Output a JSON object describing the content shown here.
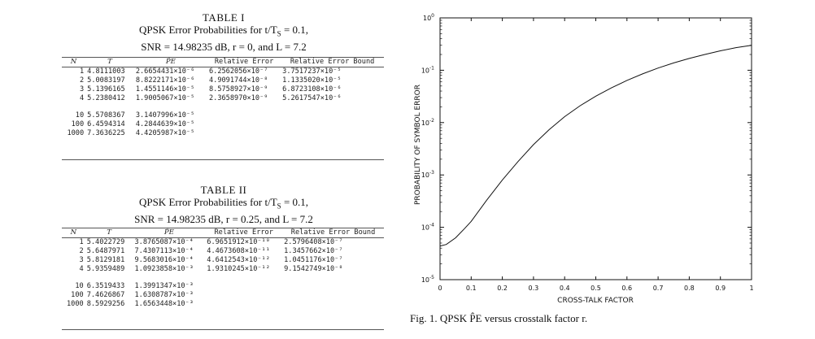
{
  "table1": {
    "number": "TABLE I",
    "caption_line1": "QPSK Error Probabilities for t/T",
    "caption_line1_sub": "S",
    "caption_line1_end": " = 0.1,",
    "caption_line2": "SNR = 14.98235 dB, r = 0, and L = 7.2",
    "headers": [
      "N",
      "T",
      "P̂E",
      "Relative Error",
      "Relative Error Bound"
    ],
    "rows": [
      [
        "1",
        "4.8111003",
        "2.6654431×10⁻⁶",
        "6.2562056×10⁻⁷",
        "3.7517237×10⁻⁵"
      ],
      [
        "2",
        "5.0083197",
        "8.8222171×10⁻⁶",
        "4.9091744×10⁻⁸",
        "1.1335020×10⁻⁵"
      ],
      [
        "3",
        "5.1396165",
        "1.4551146×10⁻⁵",
        "8.5758927×10⁻⁹",
        "6.8723108×10⁻⁶"
      ],
      [
        "4",
        "5.2380412",
        "1.9005067×10⁻⁵",
        "2.3658970×10⁻⁹",
        "5.2617547×10⁻⁶"
      ],
      [
        "10",
        "5.5708367",
        "3.1407996×10⁻⁵",
        "",
        ""
      ],
      [
        "100",
        "6.4594314",
        "4.2844639×10⁻⁵",
        "",
        ""
      ],
      [
        "1000",
        "7.3636225",
        "4.4205987×10⁻⁵",
        "",
        ""
      ]
    ]
  },
  "table2": {
    "number": "TABLE II",
    "caption_line1": "QPSK Error Probabilities for t/T",
    "caption_line1_sub": "S",
    "caption_line1_end": " = 0.1,",
    "caption_line2": "SNR = 14.98235 dB, r = 0.25, and L = 7.2",
    "headers": [
      "N",
      "T",
      "P̂E",
      "Relative Error",
      "Relative Error Bound"
    ],
    "rows": [
      [
        "1",
        "5.4022729",
        "3.8765087×10⁻⁴",
        "6.9651912×10⁻¹⁰",
        "2.5796408×10⁻⁷"
      ],
      [
        "2",
        "5.6487971",
        "7.4307113×10⁻⁴",
        "4.4673608×10⁻¹¹",
        "1.3457662×10⁻⁷"
      ],
      [
        "3",
        "5.8129181",
        "9.5683016×10⁻⁴",
        "4.6412543×10⁻¹²",
        "1.0451176×10⁻⁷"
      ],
      [
        "4",
        "5.9359489",
        "1.0923858×10⁻³",
        "1.9310245×10⁻¹²",
        "9.1542749×10⁻⁸"
      ],
      [
        "10",
        "6.3519433",
        "1.3991347×10⁻³",
        "",
        ""
      ],
      [
        "100",
        "7.4626867",
        "1.6308787×10⁻³",
        "",
        ""
      ],
      [
        "1000",
        "8.5929256",
        "1.6563448×10⁻³",
        "",
        ""
      ]
    ]
  },
  "figure": {
    "caption": "Fig. 1.   QPSK P̂E versus crosstalk factor r."
  },
  "chart_data": {
    "type": "line",
    "xlabel": "CROSS-TALK FACTOR",
    "ylabel": "PROBABILITY OF SYMBOL ERROR",
    "xlim": [
      0,
      1
    ],
    "ylim": [
      1e-05,
      1
    ],
    "yscale": "log",
    "grid": false,
    "x_ticks": [
      "0",
      "0.1",
      "0.2",
      "0.3",
      "0.4",
      "0.5",
      "0.6",
      "0.7",
      "0.8",
      "0.9",
      "1"
    ],
    "y_ticks": [
      {
        "base": "10",
        "exp": "-5"
      },
      {
        "base": "10",
        "exp": "-4"
      },
      {
        "base": "10",
        "exp": "-3"
      },
      {
        "base": "10",
        "exp": "-2"
      },
      {
        "base": "10",
        "exp": "-1"
      },
      {
        "base": "10",
        "exp": "0"
      }
    ],
    "series": [
      {
        "x": [
          0,
          0.02,
          0.05,
          0.08,
          0.1,
          0.15,
          0.2,
          0.25,
          0.3,
          0.35,
          0.4,
          0.45,
          0.5,
          0.55,
          0.6,
          0.65,
          0.7,
          0.75,
          0.8,
          0.85,
          0.9,
          0.95,
          1.0
        ],
        "y": [
          4.4e-05,
          4.7e-05,
          6.3e-05,
          9.6e-05,
          0.00013,
          0.00033,
          0.0008,
          0.0018,
          0.0038,
          0.0073,
          0.013,
          0.021,
          0.032,
          0.046,
          0.064,
          0.085,
          0.11,
          0.138,
          0.168,
          0.2,
          0.235,
          0.27,
          0.3
        ]
      }
    ]
  }
}
